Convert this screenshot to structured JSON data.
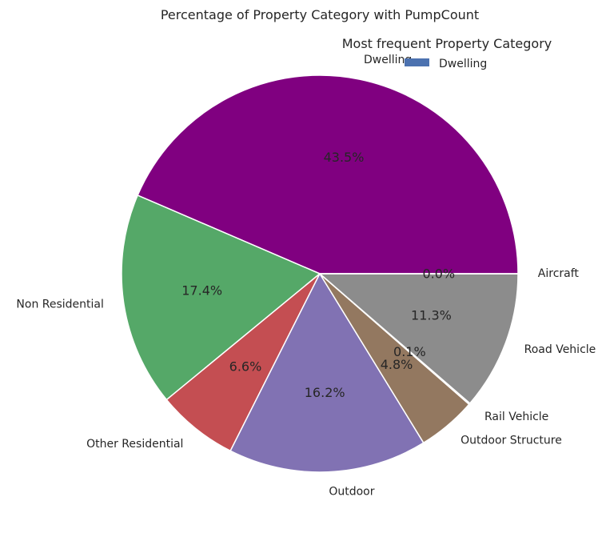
{
  "chart_data": {
    "type": "pie",
    "title": "Percentage of Property Category with PumpCount",
    "legend": {
      "title": "Most frequent Property Category",
      "placement": "top-right",
      "entries": [
        {
          "label": "Dwelling",
          "color": "#4c72b0"
        }
      ]
    },
    "start_angle_deg": 0,
    "direction": "counterclockwise",
    "slices": [
      {
        "label": "Dwelling",
        "pct_label": "43.5%",
        "value": 43.5,
        "color": "#800080"
      },
      {
        "label": "Non Residential",
        "pct_label": "17.4%",
        "value": 17.4,
        "color": "#55a868"
      },
      {
        "label": "Other Residential",
        "pct_label": "6.6%",
        "value": 6.6,
        "color": "#c44e52"
      },
      {
        "label": "Outdoor",
        "pct_label": "16.2%",
        "value": 16.2,
        "color": "#8172b3"
      },
      {
        "label": "Outdoor Structure",
        "pct_label": "4.8%",
        "value": 4.8,
        "color": "#937860"
      },
      {
        "label": "Rail Vehicle",
        "pct_label": "0.1%",
        "value": 0.1,
        "color": "#da8bc3"
      },
      {
        "label": "Road Vehicle",
        "pct_label": "11.3%",
        "value": 11.3,
        "color": "#8c8c8c"
      },
      {
        "label": "Aircraft",
        "pct_label": "0.0%",
        "value": 0.02,
        "color": "#ccb974"
      }
    ]
  }
}
